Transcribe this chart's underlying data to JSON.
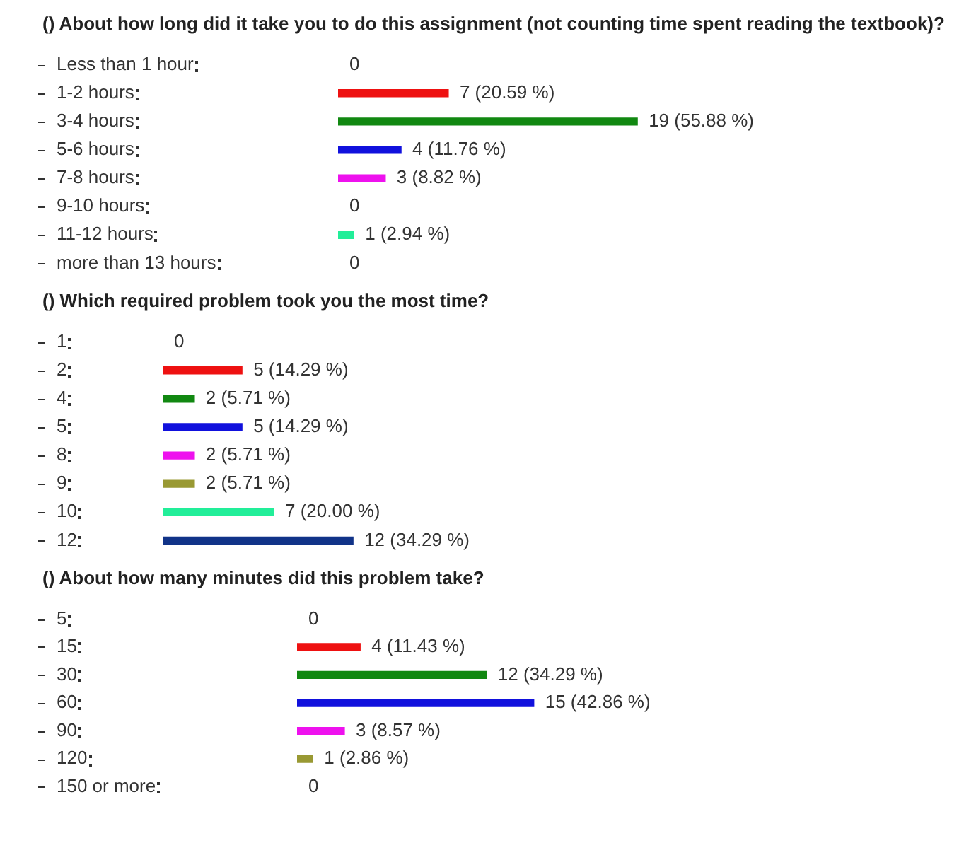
{
  "chart_data": [
    {
      "type": "bar",
      "orientation": "horizontal",
      "title": "() About how long did it take you to do this assignment (not counting time spent reading the textbook)?",
      "categories": [
        "Less than 1 hour",
        "1-2 hours",
        "3-4 hours",
        "5-6 hours",
        "7-8 hours",
        "9-10 hours",
        "11-12 hours",
        "more than 13 hours"
      ],
      "values": [
        0,
        7,
        19,
        4,
        3,
        0,
        1,
        0
      ],
      "colors": [
        null,
        "#ee1111",
        "#118811",
        "#1111dd",
        "#ee11ee",
        null,
        "#22ee99",
        null
      ],
      "value_labels": [
        "0",
        "7 (20.59 %)",
        "19 (55.88 %)",
        "4 (11.76 %)",
        "3 (8.82 %)",
        "0",
        "1 (2.94 %)",
        "0"
      ]
    },
    {
      "type": "bar",
      "orientation": "horizontal",
      "title": "() Which required problem took you the most time?",
      "categories": [
        "1",
        "2",
        "4",
        "5",
        "8",
        "9",
        "10",
        "12"
      ],
      "values": [
        0,
        5,
        2,
        5,
        2,
        2,
        7,
        12
      ],
      "colors": [
        null,
        "#ee1111",
        "#118811",
        "#1111dd",
        "#ee11ee",
        "#999933",
        "#22ee99",
        "#113388"
      ],
      "value_labels": [
        "0",
        "5 (14.29 %)",
        "2 (5.71 %)",
        "5 (14.29 %)",
        "2 (5.71 %)",
        "2 (5.71 %)",
        "7 (20.00 %)",
        "12 (34.29 %)"
      ]
    },
    {
      "type": "bar",
      "orientation": "horizontal",
      "title": "() About how many minutes did this problem take?",
      "categories": [
        "5",
        "15",
        "30",
        "60",
        "90",
        "120",
        "150 or more"
      ],
      "values": [
        0,
        4,
        12,
        15,
        3,
        1,
        0
      ],
      "colors": [
        null,
        "#ee1111",
        "#118811",
        "#1111dd",
        "#ee11ee",
        "#999933",
        null
      ],
      "value_labels": [
        "0",
        "4 (11.43 %)",
        "12 (34.29 %)",
        "15 (42.86 %)",
        "3 (8.57 %)",
        "1 (2.86 %)",
        "0"
      ]
    }
  ]
}
